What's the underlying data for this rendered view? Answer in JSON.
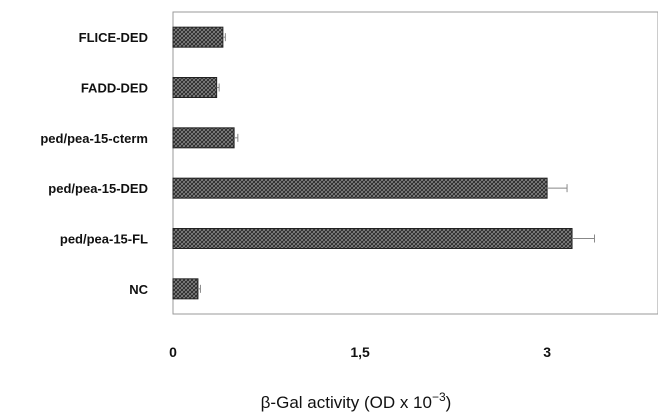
{
  "chart_data": {
    "type": "bar",
    "orientation": "horizontal",
    "categories": [
      "FLICE-DED",
      "FADD-DED",
      "ped/pea-15-cterm",
      "ped/pea-15-DED",
      "ped/pea-15-FL",
      "NC"
    ],
    "values": [
      0.4,
      0.35,
      0.49,
      3.0,
      3.2,
      0.2
    ],
    "errors": [
      0.02,
      0.02,
      0.03,
      0.16,
      0.18,
      0.02
    ],
    "xticks": [
      "0",
      "1,5",
      "3"
    ],
    "xtick_values": [
      0,
      1.5,
      3
    ],
    "xlim": [
      0,
      3.9
    ],
    "xlabel_main": "β-Gal activity (OD x 10",
    "xlabel_exp": "−3",
    "xlabel_close": ")",
    "grid": false,
    "bar_pattern": "crosshatch",
    "colors": {
      "bar_fill": "#6b6b6b",
      "bar_edge": "#222222",
      "axis": "#9a9a9a",
      "error_bar": "#888888"
    }
  }
}
